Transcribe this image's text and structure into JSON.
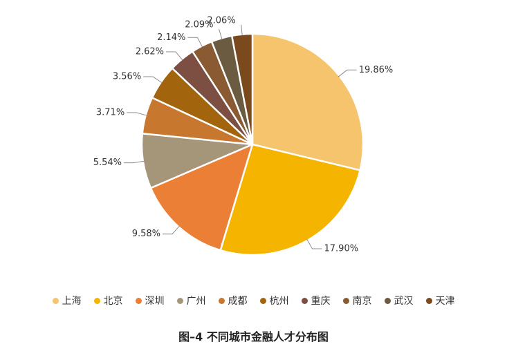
{
  "chart_data": {
    "type": "pie",
    "title": "图–4 不同城市金融人才分布图",
    "value_suffix": "%",
    "slices": [
      {
        "label": "上海",
        "value": 19.86,
        "value_label": "19.86%",
        "color": "#F6C46C"
      },
      {
        "label": "北京",
        "value": 17.9,
        "value_label": "17.90%",
        "color": "#F5B400"
      },
      {
        "label": "深圳",
        "value": 9.58,
        "value_label": "9.58%",
        "color": "#EB7F35"
      },
      {
        "label": "广州",
        "value": 5.54,
        "value_label": "5.54%",
        "color": "#A5967A"
      },
      {
        "label": "成都",
        "value": 3.71,
        "value_label": "3.71%",
        "color": "#C8782E"
      },
      {
        "label": "杭州",
        "value": 3.56,
        "value_label": "3.56%",
        "color": "#A2650E"
      },
      {
        "label": "重庆",
        "value": 2.62,
        "value_label": "2.62%",
        "color": "#7D4F43"
      },
      {
        "label": "南京",
        "value": 2.14,
        "value_label": "2.14%",
        "color": "#8A5A32"
      },
      {
        "label": "武汉",
        "value": 2.09,
        "value_label": "2.09%",
        "color": "#6B5B40"
      },
      {
        "label": "天津",
        "value": 2.06,
        "value_label": "2.06%",
        "color": "#7A4A1E"
      }
    ],
    "legend_position": "bottom",
    "start_angle": "12 o'clock",
    "direction": "clockwise"
  }
}
